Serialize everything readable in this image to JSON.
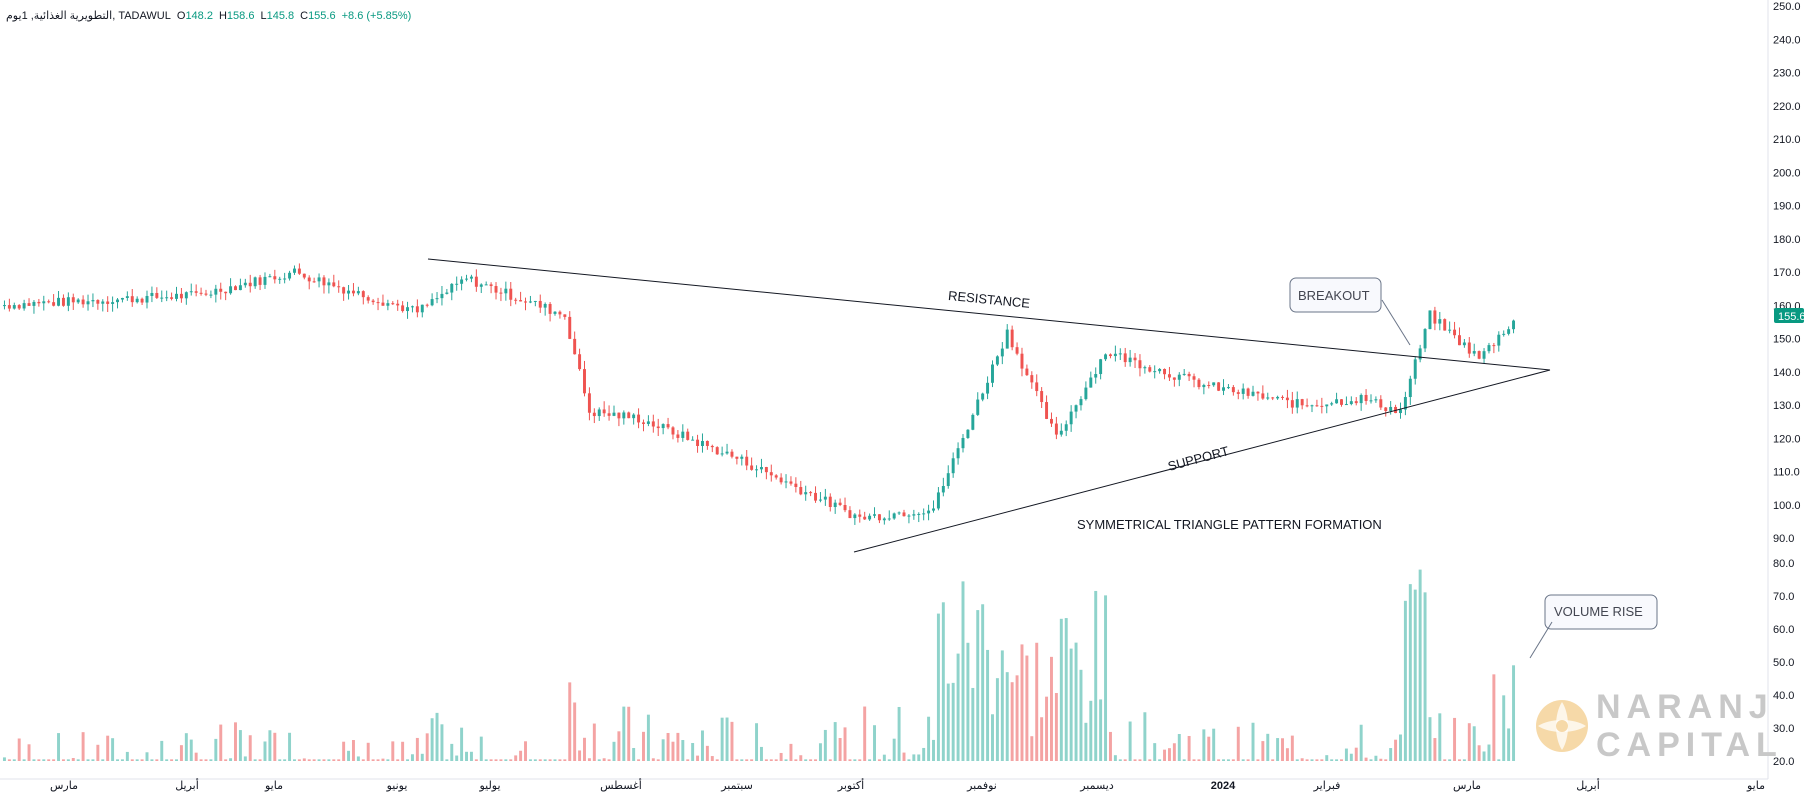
{
  "header": {
    "symbol": "التطويرية الغذائية, 1يوم, TADAWUL",
    "o_label": "O",
    "o_value": "148.2",
    "h_label": "H",
    "h_value": "158.6",
    "l_label": "L",
    "l_value": "145.8",
    "c_label": "C",
    "c_value": "155.6",
    "change": "+8.6 (+5.85%)"
  },
  "colors": {
    "up": "#26a69a",
    "down": "#ef5350",
    "vol_up": "#8fd3cb",
    "vol_down": "#f4a3a3",
    "last_price_bg": "#089981"
  },
  "chart_data": {
    "type": "candlestick",
    "price_ylim": [
      90,
      250
    ],
    "volume_axis_ticks": [
      "80.0",
      "70.0",
      "60.0",
      "50.0",
      "40.0",
      "30.0",
      "20.0"
    ],
    "price_ticks": [
      "250.0",
      "240.0",
      "230.0",
      "220.0",
      "210.0",
      "200.0",
      "190.0",
      "180.0",
      "170.0",
      "160.0",
      "150.0",
      "140.0",
      "130.0",
      "120.0",
      "110.0",
      "100.0",
      "90.0"
    ],
    "last_price": "155.6",
    "x_labels": [
      "مارس",
      "أبريل",
      "مايو",
      "يونيو",
      "يوليو",
      "أغسطس",
      "سبتمبر",
      "أكتوبر",
      "نوفمبر",
      "ديسمبر",
      "2024",
      "فبراير",
      "مارس",
      "أبريل",
      "مايو"
    ],
    "segments": [
      {
        "bars": 40,
        "from": 160,
        "to": 163,
        "vol": 20
      },
      {
        "bars": 20,
        "from": 163,
        "to": 170,
        "vol": 22
      },
      {
        "bars": 10,
        "from": 170,
        "to": 165,
        "vol": 21
      },
      {
        "bars": 15,
        "from": 165,
        "to": 158,
        "vol": 19
      },
      {
        "bars": 10,
        "from": 158,
        "to": 168,
        "vol": 24
      },
      {
        "bars": 20,
        "from": 168,
        "to": 157,
        "vol": 19
      },
      {
        "bars": 5,
        "from": 157,
        "to": 128,
        "vol": 36
      },
      {
        "bars": 10,
        "from": 128,
        "to": 126,
        "vol": 26
      },
      {
        "bars": 20,
        "from": 126,
        "to": 114,
        "vol": 24
      },
      {
        "bars": 25,
        "from": 114,
        "to": 96,
        "vol": 22
      },
      {
        "bars": 15,
        "from": 96,
        "to": 99,
        "vol": 26
      },
      {
        "bars": 15,
        "from": 99,
        "to": 152,
        "vol": 56
      },
      {
        "bars": 10,
        "from": 152,
        "to": 120,
        "vol": 44
      },
      {
        "bars": 10,
        "from": 120,
        "to": 146,
        "vol": 50
      },
      {
        "bars": 20,
        "from": 146,
        "to": 136,
        "vol": 24
      },
      {
        "bars": 20,
        "from": 136,
        "to": 130,
        "vol": 22
      },
      {
        "bars": 12,
        "from": 130,
        "to": 132,
        "vol": 22
      },
      {
        "bars": 8,
        "from": 132,
        "to": 128,
        "vol": 21
      },
      {
        "bars": 6,
        "from": 128,
        "to": 157,
        "vol": 60
      },
      {
        "bars": 10,
        "from": 157,
        "to": 144,
        "vol": 24
      },
      {
        "bars": 7,
        "from": 144,
        "to": 155.6,
        "vol": 36
      }
    ],
    "annotations": {
      "resistance": "RESISTANCE",
      "support": "SUPPORT",
      "pattern": "SYMMETRICAL TRIANGLE PATTERN FORMATION",
      "breakout": "BREAKOUT",
      "volume_rise": "VOLUME RISE"
    }
  },
  "brand": {
    "line1": "NARANJ",
    "line2": "CAPITAL"
  }
}
